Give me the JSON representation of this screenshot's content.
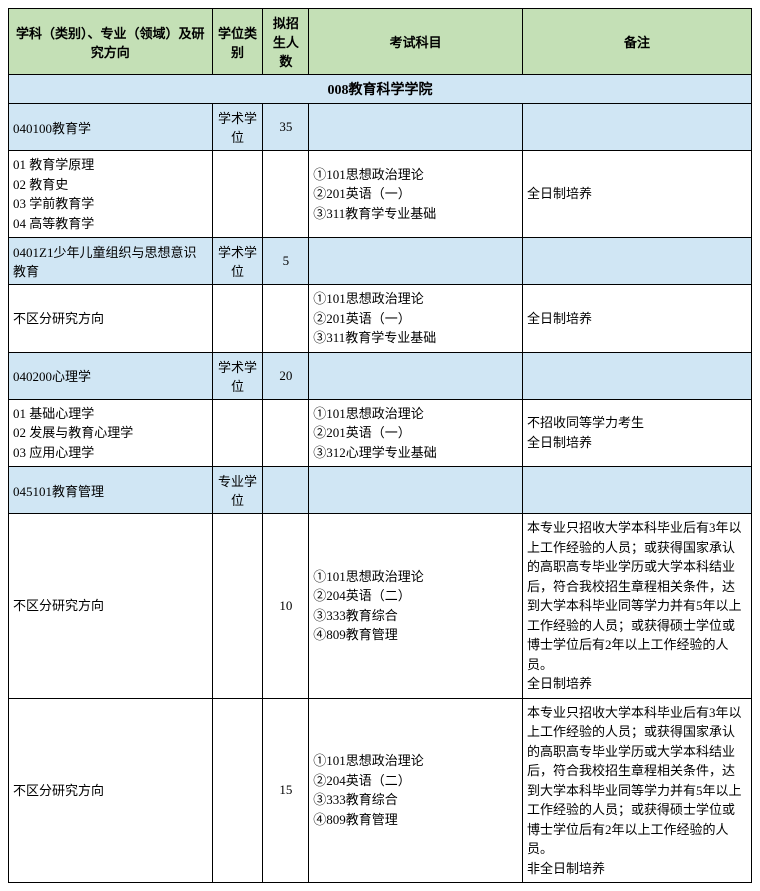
{
  "headers": {
    "col1": "学科（类别）、专业（领域）及研究方向",
    "col2": "学位类别",
    "col3": "拟招生人数",
    "col4": "考试科目",
    "col5": "备注"
  },
  "sectionTitle": "008教育科学学院",
  "rows": {
    "r1": {
      "name": "040100教育学",
      "type": "学术学位",
      "num": "35"
    },
    "r1d": {
      "dirs": "01 教育学原理\n02 教育史\n03 学前教育学\n04 高等教育学",
      "exam": "①101思想政治理论\n②201英语（一）\n③311教育学专业基础",
      "note": "全日制培养"
    },
    "r2": {
      "name": "0401Z1少年儿童组织与思想意识教育",
      "type": "学术学位",
      "num": "5"
    },
    "r2d": {
      "dirs": "不区分研究方向",
      "exam": "①101思想政治理论\n②201英语（一）\n③311教育学专业基础",
      "note": "全日制培养"
    },
    "r3": {
      "name": "040200心理学",
      "type": "学术学位",
      "num": "20"
    },
    "r3d": {
      "dirs": "01 基础心理学\n02 发展与教育心理学\n03 应用心理学",
      "exam": "①101思想政治理论\n②201英语（一）\n③312心理学专业基础",
      "note": "不招收同等学力考生\n全日制培养"
    },
    "r4": {
      "name": "045101教育管理",
      "type": "专业学位",
      "num": ""
    },
    "r4d": {
      "dirs": "不区分研究方向",
      "num": "10",
      "exam": "①101思想政治理论\n②204英语（二）\n③333教育综合\n④809教育管理",
      "note": "本专业只招收大学本科毕业后有3年以上工作经验的人员；或获得国家承认的高职高专毕业学历或大学本科结业后，符合我校招生章程相关条件，达到大学本科毕业同等学力并有5年以上工作经验的人员；或获得硕士学位或博士学位后有2年以上工作经验的人员。\n全日制培养"
    },
    "r5d": {
      "dirs": "不区分研究方向",
      "num": "15",
      "exam": "①101思想政治理论\n②204英语（二）\n③333教育综合\n④809教育管理",
      "note": "本专业只招收大学本科毕业后有3年以上工作经验的人员；或获得国家承认的高职高专毕业学历或大学本科结业后，符合我校招生章程相关条件，达到大学本科毕业同等学力并有5年以上工作经验的人员；或获得硕士学位或博士学位后有2年以上工作经验的人员。\n非全日制培养"
    }
  },
  "colors": {
    "headerBg": "#c4e0b6",
    "blueBg": "#d0e6f4",
    "border": "#000000"
  }
}
